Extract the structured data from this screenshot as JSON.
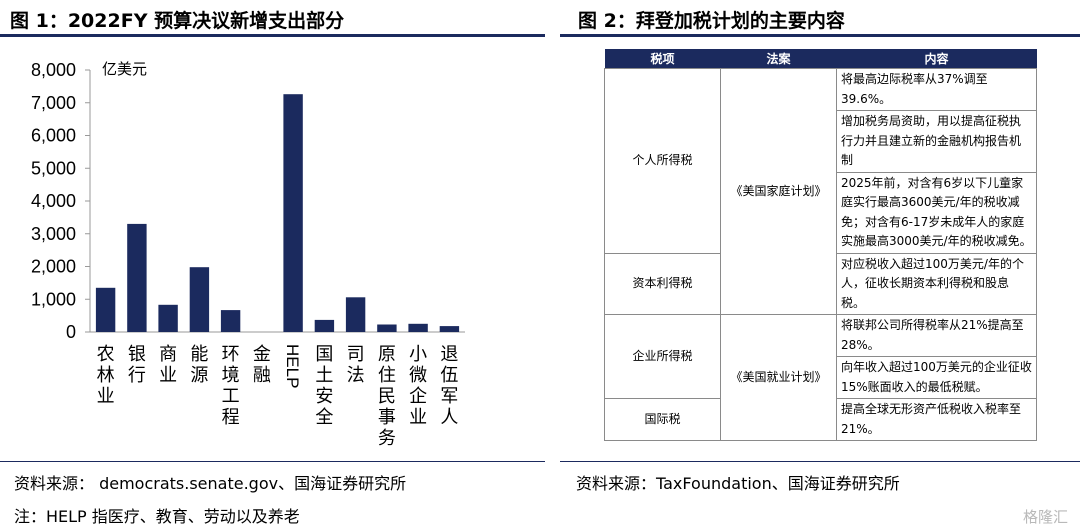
{
  "left_figure": {
    "title": "图 1：2022FY 预算决议新增支出部分",
    "source": "资料来源：  democrats.senate.gov、国海证券研究所",
    "note": "注：HELP 指医疗、教育、劳动以及养老"
  },
  "right_figure": {
    "title": "图 2：拜登加税计划的主要内容",
    "source": "资料来源：TaxFoundation、国海证券研究所"
  },
  "chart_data": {
    "type": "bar",
    "unit_label": "亿美元",
    "categories": [
      "农林业",
      "银行",
      "商业",
      "能源",
      "环境工程",
      "金融",
      "HELP",
      "国土安全",
      "司法",
      "原住民事务",
      "小微企业",
      "退伍军人"
    ],
    "values": [
      1350,
      3300,
      830,
      1980,
      670,
      0,
      7260,
      370,
      1060,
      230,
      250,
      180
    ],
    "ylim": [
      0,
      8000
    ],
    "yticks": [
      0,
      1000,
      2000,
      3000,
      4000,
      5000,
      6000,
      7000,
      8000
    ],
    "ytick_labels": [
      "0",
      "1,000",
      "2,000",
      "3,000",
      "4,000",
      "5,000",
      "6,000",
      "7,000",
      "8,000"
    ],
    "bar_color": "#1b2a5e",
    "grid": false
  },
  "table": {
    "headers": [
      "税项",
      "法案",
      "内容"
    ],
    "tax_types": [
      "个人所得税",
      "资本利得税",
      "企业所得税",
      "国际税"
    ],
    "bills": [
      "《美国家庭计划》",
      "《美国就业计划》"
    ],
    "contents": [
      "将最高边际税率从37%调至39.6%。",
      "增加税务局资助，用以提高征税执行力并且建立新的金融机构报告机制",
      "2025年前，对含有6岁以下儿童家庭实行最高3600美元/年的税收减免；对含有6-17岁未成年人的家庭实施最高3000美元/年的税收减免。",
      "对应税收入超过100万美元/年的个人，征收长期资本利得税和股息税。",
      "将联邦公司所得税率从21%提高至28%。",
      "向年收入超过100万美元的企业征收15%账面收入的最低税赋。",
      "提高全球无形资产低税收入税率至21%。"
    ]
  },
  "colors": {
    "navy": "#1b2a5e"
  },
  "watermark": "格隆汇"
}
